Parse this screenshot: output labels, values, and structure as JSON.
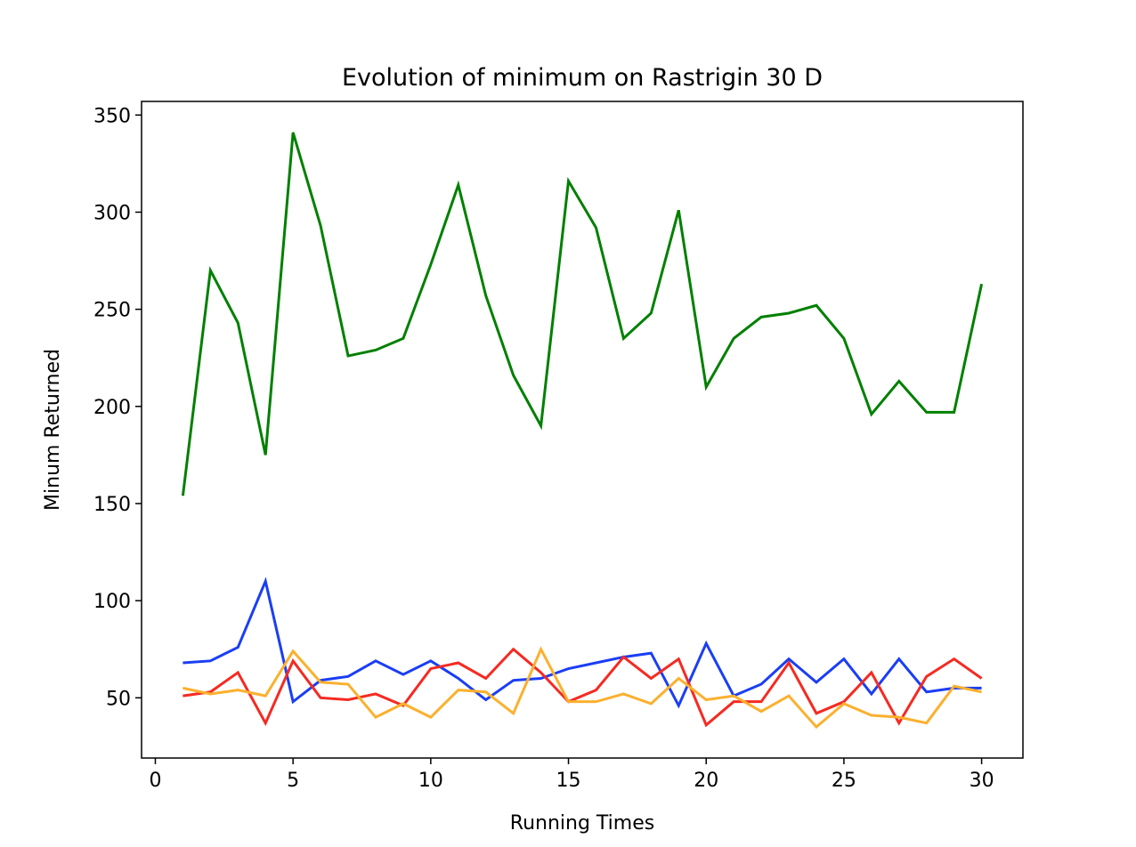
{
  "chart_data": {
    "type": "line",
    "title": "Evolution of minimum on Rastrigin 30 D",
    "xlabel": "Running Times",
    "ylabel": "Minum Returned",
    "xlim": [
      -0.5,
      31.5
    ],
    "ylim": [
      19,
      357
    ],
    "xticks": [
      0,
      5,
      10,
      15,
      20,
      25,
      30
    ],
    "yticks": [
      50,
      100,
      150,
      200,
      250,
      300,
      350
    ],
    "grid": false,
    "x": [
      1,
      2,
      3,
      4,
      5,
      6,
      7,
      8,
      9,
      10,
      11,
      12,
      13,
      14,
      15,
      16,
      17,
      18,
      19,
      20,
      21,
      22,
      23,
      24,
      25,
      26,
      27,
      28,
      29,
      30
    ],
    "series": [
      {
        "color": "#008000",
        "values": [
          154,
          270,
          243,
          175,
          341,
          293,
          226,
          229,
          235,
          273,
          314,
          257,
          216,
          190,
          316,
          292,
          235,
          248,
          301,
          210,
          235,
          246,
          248,
          252,
          235,
          196,
          213,
          197,
          197,
          263
        ]
      },
      {
        "color": "#1a3ef5",
        "values": [
          68,
          69,
          76,
          110,
          48,
          59,
          61,
          69,
          62,
          69,
          60,
          49,
          59,
          60,
          65,
          68,
          71,
          73,
          46,
          78,
          51,
          57,
          70,
          58,
          70,
          52,
          70,
          53,
          55,
          55
        ]
      },
      {
        "color": "#f52a22",
        "values": [
          51,
          53,
          63,
          37,
          69,
          50,
          49,
          52,
          46,
          65,
          68,
          60,
          75,
          63,
          48,
          54,
          71,
          60,
          70,
          36,
          48,
          48,
          68,
          42,
          48,
          63,
          37,
          61,
          70,
          60
        ]
      },
      {
        "color": "#fbb02e",
        "values": [
          55,
          52,
          54,
          51,
          74,
          58,
          57,
          40,
          47,
          40,
          54,
          53,
          42,
          75,
          48,
          48,
          52,
          47,
          60,
          49,
          51,
          43,
          51,
          35,
          47,
          41,
          40,
          37,
          56,
          53
        ]
      }
    ]
  }
}
